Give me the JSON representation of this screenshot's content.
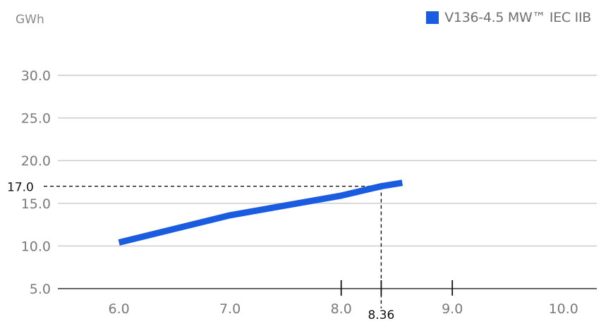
{
  "chart_data": {
    "type": "line",
    "unit_label": "GWh",
    "y_ticks": [
      "5.0",
      "10.0",
      "15.0",
      "20.0",
      "25.0",
      "30.0"
    ],
    "x_ticks": [
      "6.0",
      "7.0",
      "8.0",
      "9.0",
      "10.0"
    ],
    "xlim": [
      5.45,
      10.3
    ],
    "ylim": [
      5.0,
      30.0
    ],
    "grid": true,
    "legend_position": "top-right",
    "series": [
      {
        "name": "V136-4.5 MW™ IEC IIB",
        "color": "#1a5ce0",
        "x": [
          6.0,
          7.0,
          8.0,
          8.36,
          8.55
        ],
        "y": [
          10.4,
          13.6,
          15.9,
          17.0,
          17.4
        ]
      }
    ],
    "marker": {
      "x": 8.36,
      "y": 17.0,
      "x_label": "8.36",
      "y_label": "17.0"
    },
    "x_tick_marks": [
      8.0,
      9.0
    ]
  }
}
